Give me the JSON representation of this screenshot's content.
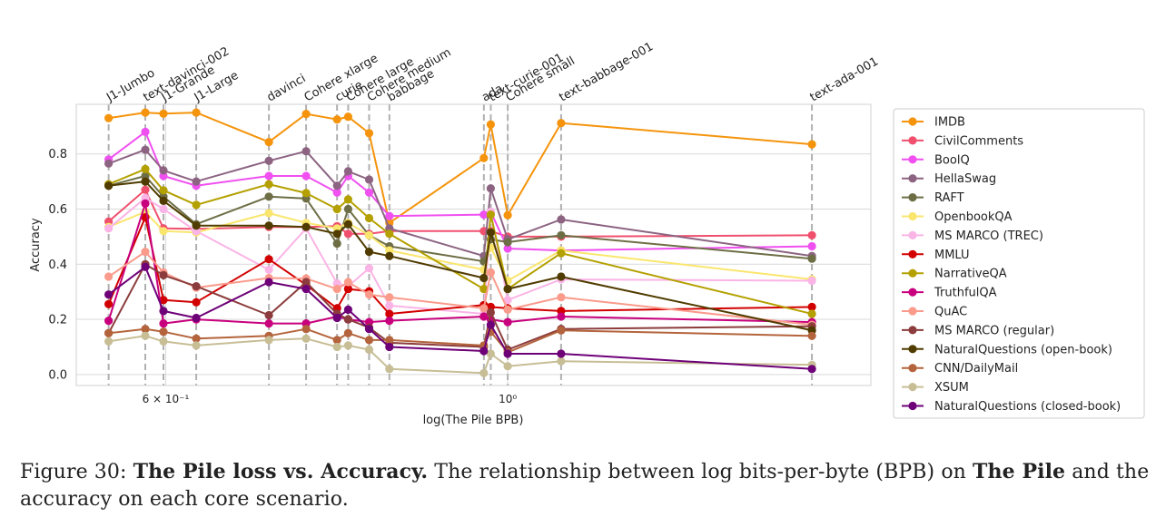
{
  "chart_data": {
    "type": "line",
    "xlabel": "log(The Pile BPB)",
    "ylabel": "Accuracy",
    "x_scale": "log",
    "xlim": [
      0.525,
      1.72
    ],
    "ylim": [
      -0.04,
      0.98
    ],
    "y_ticks": [
      0.0,
      0.2,
      0.4,
      0.6,
      0.8
    ],
    "y_tick_labels": [
      "0.0",
      "0.2",
      "0.4",
      "0.6",
      "0.8"
    ],
    "x_ticks": [
      0.6,
      1.0
    ],
    "x_tick_labels": [
      "6 × 10⁻¹",
      "10⁰"
    ],
    "grid": true,
    "legend_position": "right",
    "models": [
      {
        "name": "J1-Jumbo",
        "x": 0.551
      },
      {
        "name": "text-davinci-002",
        "x": 0.582
      },
      {
        "name": "J1-Grande",
        "x": 0.598
      },
      {
        "name": "J1-Large",
        "x": 0.628
      },
      {
        "name": "davinci",
        "x": 0.7
      },
      {
        "name": "Cohere xlarge",
        "x": 0.74
      },
      {
        "name": "curie",
        "x": 0.775
      },
      {
        "name": "Cohere large",
        "x": 0.788
      },
      {
        "name": "Cohere medium",
        "x": 0.813
      },
      {
        "name": "babbage",
        "x": 0.838
      },
      {
        "name": "ada",
        "x": 0.965
      },
      {
        "name": "text-curie-001",
        "x": 0.975
      },
      {
        "name": "Cohere small",
        "x": 1.0
      },
      {
        "name": "text-babbage-001",
        "x": 1.083
      },
      {
        "name": "text-ada-001",
        "x": 1.575
      }
    ],
    "model_label_order": [
      "J1-Jumbo",
      "text-davinci-002",
      "J1-Grande",
      "J1-Large",
      "davinci",
      "Cohere xlarge",
      "curie",
      "Cohere large",
      "Cohere medium",
      "babbage",
      "ada",
      "text-curie-001",
      "Cohere small",
      "text-babbage-001",
      "text-ada-001"
    ],
    "series": [
      {
        "name": "IMDB",
        "color": "#f5940c",
        "points": [
          [
            0.551,
            0.93
          ],
          [
            0.582,
            0.95
          ],
          [
            0.598,
            0.946
          ],
          [
            0.628,
            0.95
          ],
          [
            0.7,
            0.843
          ],
          [
            0.74,
            0.945
          ],
          [
            0.775,
            0.925
          ],
          [
            0.788,
            0.935
          ],
          [
            0.813,
            0.875
          ],
          [
            0.838,
            0.55
          ],
          [
            0.965,
            0.785
          ],
          [
            0.975,
            0.907
          ],
          [
            1.0,
            0.578
          ],
          [
            1.083,
            0.912
          ],
          [
            1.575,
            0.835
          ]
        ]
      },
      {
        "name": "CivilComments",
        "color": "#f0506e",
        "points": [
          [
            0.551,
            0.555
          ],
          [
            0.582,
            0.67
          ],
          [
            0.598,
            0.53
          ],
          [
            0.628,
            0.528
          ],
          [
            0.7,
            0.535
          ],
          [
            0.74,
            0.535
          ],
          [
            0.775,
            0.538
          ],
          [
            0.788,
            0.51
          ],
          [
            0.813,
            0.51
          ],
          [
            0.838,
            0.52
          ],
          [
            0.965,
            0.52
          ],
          [
            0.975,
            0.52
          ],
          [
            1.0,
            0.5
          ],
          [
            1.083,
            0.5
          ],
          [
            1.575,
            0.505
          ]
        ]
      },
      {
        "name": "BoolQ",
        "color": "#f050f0",
        "points": [
          [
            0.551,
            0.78
          ],
          [
            0.582,
            0.88
          ],
          [
            0.598,
            0.72
          ],
          [
            0.628,
            0.685
          ],
          [
            0.7,
            0.72
          ],
          [
            0.74,
            0.72
          ],
          [
            0.775,
            0.66
          ],
          [
            0.788,
            0.72
          ],
          [
            0.813,
            0.66
          ],
          [
            0.838,
            0.575
          ],
          [
            0.965,
            0.58
          ],
          [
            0.975,
            0.59
          ],
          [
            1.0,
            0.457
          ],
          [
            1.083,
            0.45
          ],
          [
            1.575,
            0.465
          ]
        ]
      },
      {
        "name": "HellaSwag",
        "color": "#8c6482",
        "points": [
          [
            0.551,
            0.765
          ],
          [
            0.582,
            0.815
          ],
          [
            0.598,
            0.74
          ],
          [
            0.628,
            0.7
          ],
          [
            0.7,
            0.775
          ],
          [
            0.74,
            0.81
          ],
          [
            0.775,
            0.685
          ],
          [
            0.788,
            0.737
          ],
          [
            0.813,
            0.707
          ],
          [
            0.838,
            0.53
          ],
          [
            0.965,
            0.43
          ],
          [
            0.975,
            0.675
          ],
          [
            1.0,
            0.49
          ],
          [
            1.083,
            0.562
          ],
          [
            1.575,
            0.43
          ]
        ]
      },
      {
        "name": "RAFT",
        "color": "#6e6e46",
        "points": [
          [
            0.551,
            0.685
          ],
          [
            0.582,
            0.72
          ],
          [
            0.598,
            0.645
          ],
          [
            0.628,
            0.545
          ],
          [
            0.7,
            0.645
          ],
          [
            0.74,
            0.638
          ],
          [
            0.775,
            0.475
          ],
          [
            0.788,
            0.6
          ],
          [
            0.813,
            0.505
          ],
          [
            0.838,
            0.465
          ],
          [
            0.965,
            0.41
          ],
          [
            0.975,
            0.49
          ],
          [
            1.0,
            0.48
          ],
          [
            1.083,
            0.505
          ],
          [
            1.575,
            0.42
          ]
        ]
      },
      {
        "name": "OpenbookQA",
        "color": "#fae66e",
        "points": [
          [
            0.551,
            0.535
          ],
          [
            0.582,
            0.59
          ],
          [
            0.598,
            0.52
          ],
          [
            0.628,
            0.515
          ],
          [
            0.7,
            0.585
          ],
          [
            0.74,
            0.55
          ],
          [
            0.775,
            0.53
          ],
          [
            0.788,
            0.55
          ],
          [
            0.813,
            0.505
          ],
          [
            0.838,
            0.45
          ],
          [
            0.965,
            0.38
          ],
          [
            0.975,
            0.46
          ],
          [
            1.0,
            0.34
          ],
          [
            1.083,
            0.45
          ],
          [
            1.575,
            0.345
          ]
        ]
      },
      {
        "name": "MS MARCO (TREC)",
        "color": "#fab4e6",
        "points": [
          [
            0.551,
            0.53
          ],
          [
            0.582,
            0.64
          ],
          [
            0.598,
            0.6
          ],
          [
            0.628,
            0.52
          ],
          [
            0.7,
            0.38
          ],
          [
            0.74,
            0.53
          ],
          [
            0.775,
            0.33
          ],
          [
            0.788,
            0.32
          ],
          [
            0.813,
            0.385
          ],
          [
            0.838,
            0.25
          ],
          [
            0.965,
            0.22
          ],
          [
            0.975,
            0.59
          ],
          [
            1.0,
            0.27
          ],
          [
            1.083,
            0.345
          ],
          [
            1.575,
            0.34
          ]
        ]
      },
      {
        "name": "MMLU",
        "color": "#d20000",
        "points": [
          [
            0.551,
            0.255
          ],
          [
            0.582,
            0.57
          ],
          [
            0.598,
            0.27
          ],
          [
            0.628,
            0.262
          ],
          [
            0.7,
            0.418
          ],
          [
            0.74,
            0.325
          ],
          [
            0.775,
            0.24
          ],
          [
            0.788,
            0.31
          ],
          [
            0.813,
            0.302
          ],
          [
            0.838,
            0.22
          ],
          [
            0.965,
            0.252
          ],
          [
            0.975,
            0.245
          ],
          [
            1.0,
            0.24
          ],
          [
            1.083,
            0.23
          ],
          [
            1.575,
            0.245
          ]
        ]
      },
      {
        "name": "NarrativeQA",
        "color": "#b4a000",
        "points": [
          [
            0.551,
            0.69
          ],
          [
            0.582,
            0.745
          ],
          [
            0.598,
            0.668
          ],
          [
            0.628,
            0.615
          ],
          [
            0.7,
            0.69
          ],
          [
            0.74,
            0.658
          ],
          [
            0.775,
            0.6
          ],
          [
            0.788,
            0.635
          ],
          [
            0.813,
            0.567
          ],
          [
            0.838,
            0.51
          ],
          [
            0.965,
            0.31
          ],
          [
            0.975,
            0.58
          ],
          [
            1.0,
            0.31
          ],
          [
            1.083,
            0.44
          ],
          [
            1.575,
            0.22
          ]
        ]
      },
      {
        "name": "TruthfulQA",
        "color": "#c8007d",
        "points": [
          [
            0.551,
            0.195
          ],
          [
            0.582,
            0.62
          ],
          [
            0.598,
            0.185
          ],
          [
            0.628,
            0.2
          ],
          [
            0.7,
            0.185
          ],
          [
            0.74,
            0.185
          ],
          [
            0.775,
            0.21
          ],
          [
            0.788,
            0.2
          ],
          [
            0.813,
            0.19
          ],
          [
            0.838,
            0.195
          ],
          [
            0.965,
            0.21
          ],
          [
            0.975,
            0.2
          ],
          [
            1.0,
            0.19
          ],
          [
            1.083,
            0.21
          ],
          [
            1.575,
            0.19
          ]
        ]
      },
      {
        "name": "QuAC",
        "color": "#fa9b8c",
        "points": [
          [
            0.551,
            0.355
          ],
          [
            0.582,
            0.445
          ],
          [
            0.598,
            0.37
          ],
          [
            0.628,
            0.315
          ],
          [
            0.7,
            0.35
          ],
          [
            0.74,
            0.348
          ],
          [
            0.775,
            0.31
          ],
          [
            0.788,
            0.335
          ],
          [
            0.813,
            0.29
          ],
          [
            0.838,
            0.28
          ],
          [
            0.965,
            0.24
          ],
          [
            0.975,
            0.37
          ],
          [
            1.0,
            0.235
          ],
          [
            1.083,
            0.28
          ],
          [
            1.575,
            0.18
          ]
        ]
      },
      {
        "name": "MS MARCO (regular)",
        "color": "#8c3c3c",
        "points": [
          [
            0.551,
            0.15
          ],
          [
            0.582,
            0.4
          ],
          [
            0.598,
            0.36
          ],
          [
            0.628,
            0.32
          ],
          [
            0.7,
            0.215
          ],
          [
            0.74,
            0.335
          ],
          [
            0.775,
            0.22
          ],
          [
            0.788,
            0.2
          ],
          [
            0.813,
            0.17
          ],
          [
            0.838,
            0.115
          ],
          [
            0.965,
            0.1
          ],
          [
            0.975,
            0.225
          ],
          [
            1.0,
            0.09
          ],
          [
            1.083,
            0.165
          ],
          [
            1.575,
            0.175
          ]
        ]
      },
      {
        "name": "NaturalQuestions (open-book)",
        "color": "#503c00",
        "points": [
          [
            0.551,
            0.685
          ],
          [
            0.582,
            0.7
          ],
          [
            0.598,
            0.63
          ],
          [
            0.628,
            0.54
          ],
          [
            0.7,
            0.54
          ],
          [
            0.74,
            0.535
          ],
          [
            0.775,
            0.51
          ],
          [
            0.788,
            0.545
          ],
          [
            0.813,
            0.445
          ],
          [
            0.838,
            0.43
          ],
          [
            0.965,
            0.35
          ],
          [
            0.975,
            0.515
          ],
          [
            1.0,
            0.31
          ],
          [
            1.083,
            0.355
          ],
          [
            1.575,
            0.16
          ]
        ]
      },
      {
        "name": "CNN/DailyMail",
        "color": "#b4643c",
        "points": [
          [
            0.551,
            0.15
          ],
          [
            0.582,
            0.165
          ],
          [
            0.598,
            0.155
          ],
          [
            0.628,
            0.13
          ],
          [
            0.7,
            0.14
          ],
          [
            0.74,
            0.165
          ],
          [
            0.775,
            0.125
          ],
          [
            0.788,
            0.15
          ],
          [
            0.813,
            0.125
          ],
          [
            0.838,
            0.125
          ],
          [
            0.965,
            0.105
          ],
          [
            0.975,
            0.155
          ],
          [
            1.0,
            0.08
          ],
          [
            1.083,
            0.16
          ],
          [
            1.575,
            0.14
          ]
        ]
      },
      {
        "name": "XSUM",
        "color": "#c8be96",
        "points": [
          [
            0.551,
            0.12
          ],
          [
            0.582,
            0.14
          ],
          [
            0.598,
            0.12
          ],
          [
            0.628,
            0.105
          ],
          [
            0.7,
            0.125
          ],
          [
            0.74,
            0.13
          ],
          [
            0.775,
            0.1
          ],
          [
            0.788,
            0.105
          ],
          [
            0.813,
            0.09
          ],
          [
            0.838,
            0.02
          ],
          [
            0.965,
            0.005
          ],
          [
            0.975,
            0.075
          ],
          [
            1.0,
            0.03
          ],
          [
            1.083,
            0.048
          ],
          [
            1.575,
            0.035
          ]
        ]
      },
      {
        "name": "NaturalQuestions (closed-book)",
        "color": "#6e0078",
        "points": [
          [
            0.551,
            0.29
          ],
          [
            0.582,
            0.39
          ],
          [
            0.598,
            0.23
          ],
          [
            0.628,
            0.205
          ],
          [
            0.7,
            0.335
          ],
          [
            0.74,
            0.31
          ],
          [
            0.775,
            0.205
          ],
          [
            0.788,
            0.235
          ],
          [
            0.813,
            0.165
          ],
          [
            0.838,
            0.1
          ],
          [
            0.965,
            0.085
          ],
          [
            0.975,
            0.18
          ],
          [
            1.0,
            0.075
          ],
          [
            1.083,
            0.075
          ],
          [
            1.575,
            0.02
          ]
        ]
      }
    ]
  },
  "caption": {
    "prefix": "Figure 30: ",
    "bold1": "The Pile loss vs. Accuracy.",
    "text1": " The relationship between log bits-per-byte (BPB) on ",
    "bold2": "The Pile",
    "text2": " and the accuracy on each core scenario."
  }
}
